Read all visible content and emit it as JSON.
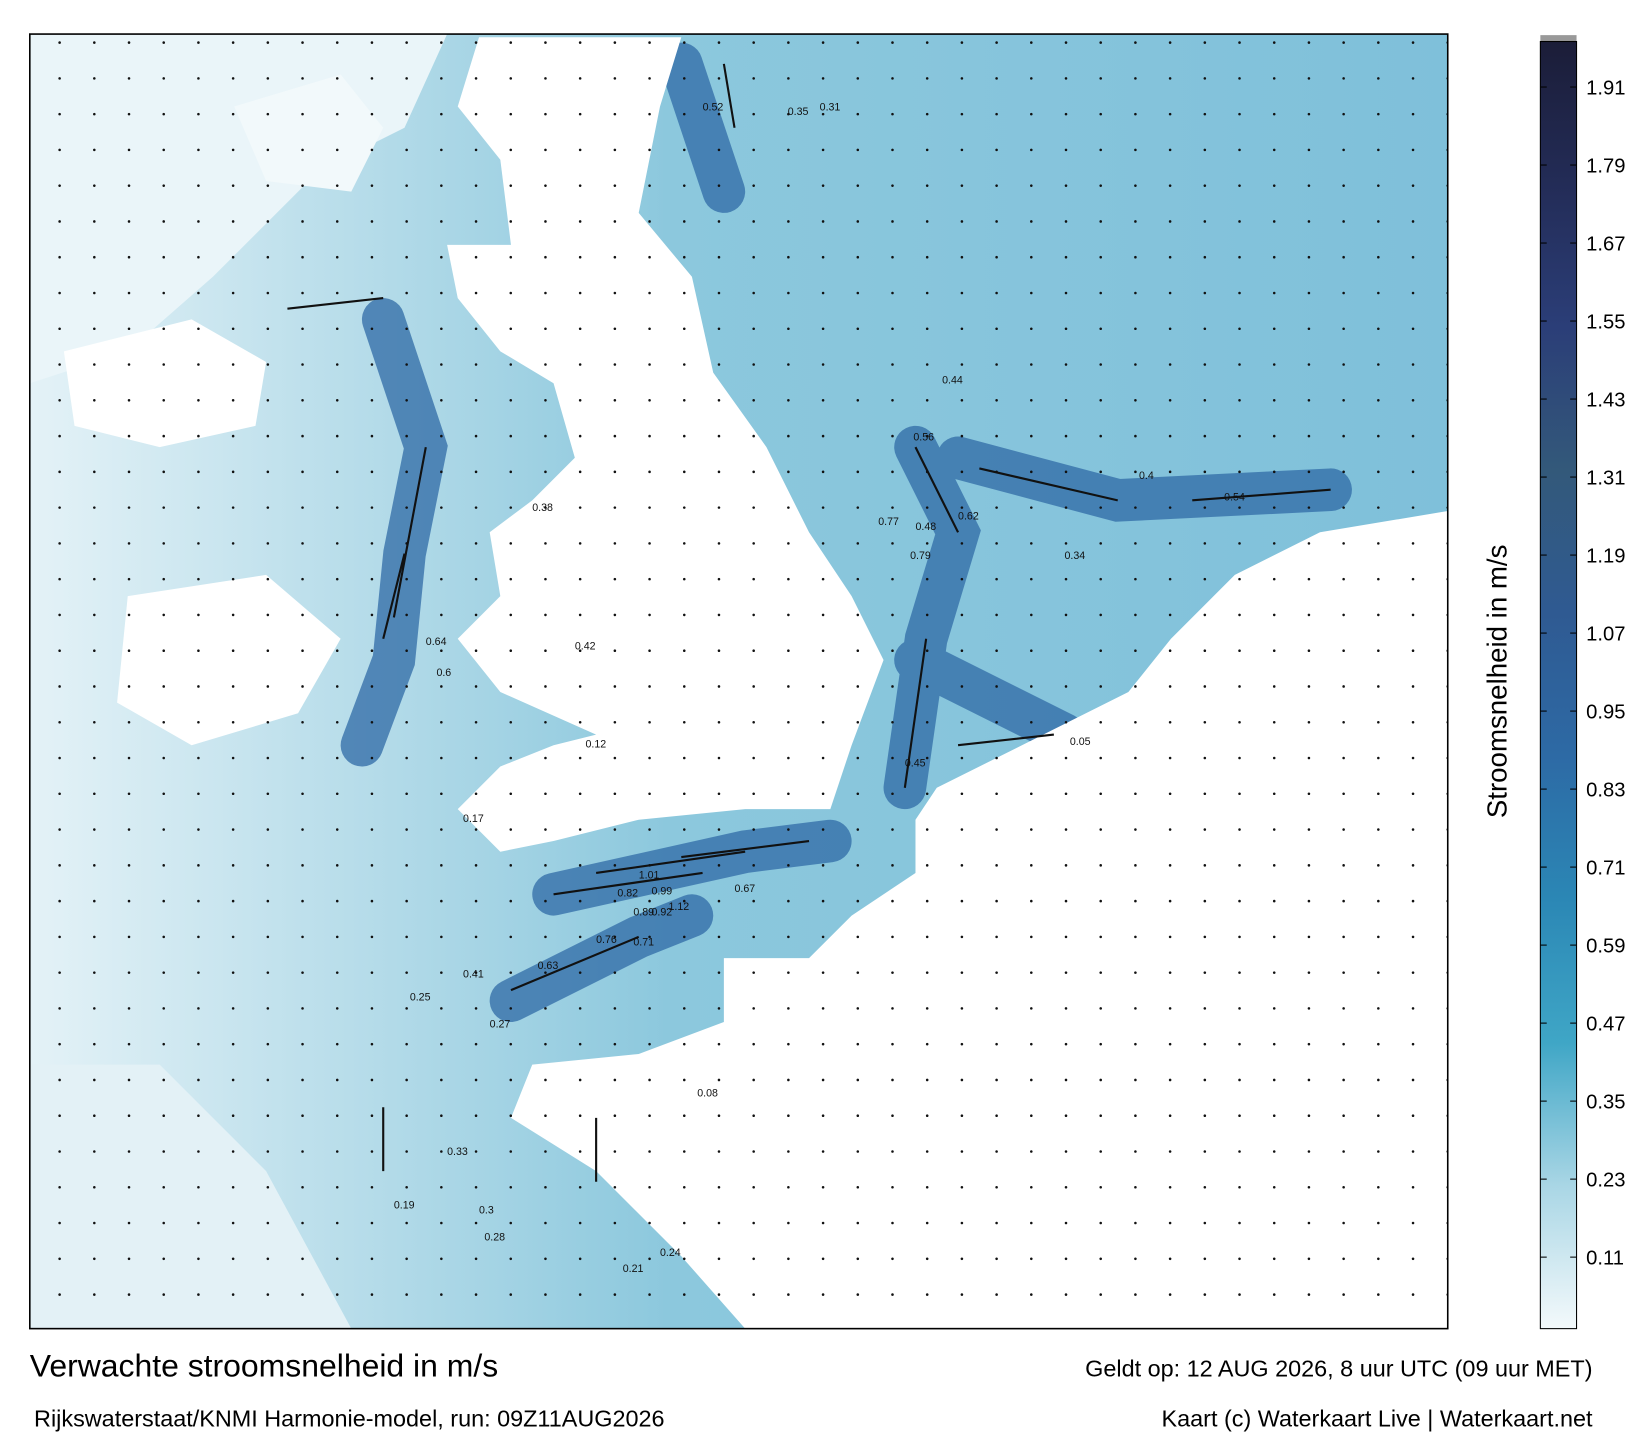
{
  "title": "Verwachte stroomsnelheid in m/s",
  "subtitle": "Rijkswaterstaat/KNMI Harmonie-model, run: 09Z11AUG2026",
  "valid_time": "Geldt op: 12 AUG 2026, 8 uur UTC (09 uur MET)",
  "credit": "Kaart (c) Waterkaart Live | Waterkaart.net",
  "colorbar": {
    "label": "Stroomsnelheid in m/s",
    "lim": [
      0,
      1.98
    ],
    "ticks": [
      0.11,
      0.23,
      0.35,
      0.47,
      0.59,
      0.71,
      0.83,
      0.95,
      1.07,
      1.19,
      1.31,
      1.43,
      1.55,
      1.67,
      1.79,
      1.91
    ],
    "colors": [
      "#f3f9fb",
      "#a9d6e5",
      "#3fa6c6",
      "#2b87b5",
      "#2d6aa5",
      "#2f5a92",
      "#33597a",
      "#2b3e78",
      "#232c57",
      "#1b1d38"
    ]
  },
  "speed_labels": [
    0.52,
    0.35,
    0.31,
    0.42,
    0.38,
    0.64,
    0.6,
    0.48,
    0.44,
    0.56,
    0.79,
    0.77,
    0.62,
    0.45,
    0.4,
    0.34,
    0.54,
    1.01,
    0.99,
    1.12,
    0.82,
    0.89,
    0.92,
    0.67,
    0.76,
    0.71,
    0.63,
    0.41,
    0.27,
    0.25,
    0.21,
    0.17,
    0.12,
    0.08,
    0.05,
    0.3,
    0.24,
    0.33,
    0.28,
    0.19
  ]
}
